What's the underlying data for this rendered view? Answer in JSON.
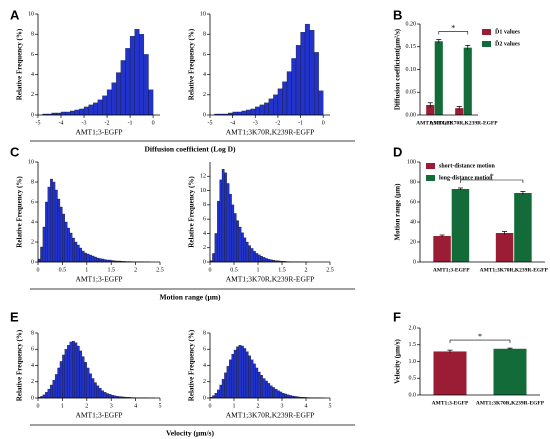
{
  "panels": [
    {
      "letter": "A",
      "xlabel": "Diffusion coefficient (Log D)"
    },
    {
      "letter": "B"
    },
    {
      "letter": "C",
      "xlabel": "Motion range (μm)"
    },
    {
      "letter": "D"
    },
    {
      "letter": "E",
      "xlabel": "Velocity (μm/s)"
    },
    {
      "letter": "F"
    }
  ],
  "chart_data": [
    {
      "type": "histogram",
      "ylabel": "Relative Frequency (%)",
      "xlabel": "AMT1;3-EGFP",
      "color": "#2233cc",
      "bins": [
        -4.8,
        -4.6,
        -4.4,
        -4.2,
        -4.0,
        -3.8,
        -3.6,
        -3.4,
        -3.2,
        -3.0,
        -2.8,
        -2.6,
        -2.4,
        -2.2,
        -2.0,
        -1.8,
        -1.6,
        -1.4,
        -1.2,
        -1.0,
        -0.8,
        -0.6,
        -0.4,
        -0.2,
        0.0
      ],
      "counts": [
        0.1,
        0.1,
        0.2,
        0.2,
        0.3,
        0.3,
        0.4,
        0.5,
        0.6,
        0.8,
        1.0,
        1.2,
        1.5,
        1.9,
        2.5,
        3.2,
        4.2,
        5.4,
        6.6,
        7.8,
        8.5,
        8.0,
        6.0,
        2.5
      ],
      "xlim": [
        -5,
        0.3
      ],
      "xticks": [
        -5,
        -4,
        -3,
        -2,
        -1,
        0
      ],
      "ylim": [
        0,
        10
      ],
      "yticks": [
        0,
        2,
        4,
        6,
        8,
        10
      ]
    },
    {
      "type": "histogram",
      "ylabel": "Relative Frequency (%)",
      "xlabel": "AMT1;3K70R,K239R-EGFP",
      "color": "#2233cc",
      "bins": [
        -4.8,
        -4.6,
        -4.4,
        -4.2,
        -4.0,
        -3.8,
        -3.6,
        -3.4,
        -3.2,
        -3.0,
        -2.8,
        -2.6,
        -2.4,
        -2.2,
        -2.0,
        -1.8,
        -1.6,
        -1.4,
        -1.2,
        -1.0,
        -0.8,
        -0.6,
        -0.4,
        -0.2,
        0.0
      ],
      "counts": [
        0.1,
        0.1,
        0.1,
        0.2,
        0.3,
        0.3,
        0.4,
        0.5,
        0.6,
        0.8,
        1.0,
        1.2,
        1.6,
        2.0,
        2.6,
        3.3,
        4.3,
        5.6,
        6.9,
        8.2,
        9.0,
        8.4,
        6.2,
        2.4
      ],
      "xlim": [
        -5,
        0.3
      ],
      "xticks": [
        -5,
        -4,
        -3,
        -2,
        -1,
        0
      ],
      "ylim": [
        0,
        10
      ],
      "yticks": [
        0,
        2,
        4,
        6,
        8,
        10
      ]
    },
    {
      "type": "histogram",
      "ylabel": "Relative Frequency (%)",
      "xlabel": "AMT1;3-EGFP",
      "color": "#2233cc",
      "bins": [
        0,
        0.05,
        0.1,
        0.15,
        0.2,
        0.25,
        0.3,
        0.35,
        0.4,
        0.45,
        0.5,
        0.55,
        0.6,
        0.65,
        0.7,
        0.75,
        0.8,
        0.85,
        0.9,
        0.95,
        1.0,
        1.05,
        1.1,
        1.15,
        1.2,
        1.25,
        1.3,
        1.35,
        1.4,
        1.45,
        1.5,
        1.55,
        1.6,
        1.65,
        1.7,
        1.75,
        1.8,
        1.85,
        1.9,
        1.95,
        2.0,
        2.05,
        2.1,
        2.15,
        2.2,
        2.25,
        2.3,
        2.35,
        2.4,
        2.45,
        2.5
      ],
      "counts": [
        0.3,
        1.5,
        3.5,
        6.0,
        7.5,
        8.3,
        8.0,
        7.2,
        6.3,
        5.5,
        4.8,
        4.0,
        3.4,
        2.9,
        2.4,
        2.0,
        1.7,
        1.4,
        1.1,
        0.9,
        0.8,
        0.7,
        0.6,
        0.5,
        0.4,
        0.35,
        0.3,
        0.25,
        0.2,
        0.2,
        0.15,
        0.12,
        0.1,
        0.1,
        0.08,
        0.06,
        0.05,
        0.05,
        0.04,
        0.03,
        0.03,
        0.02,
        0.02,
        0.01,
        0.01,
        0.01,
        0,
        0,
        0,
        0
      ],
      "xlim": [
        0,
        2.5
      ],
      "xticks": [
        0,
        0.5,
        1,
        1.5,
        2,
        2.5
      ],
      "ylim": [
        0,
        10
      ],
      "yticks": [
        0,
        2,
        4,
        6,
        8,
        10
      ]
    },
    {
      "type": "histogram",
      "ylabel": "Relative Frequency (%)",
      "xlabel": "AMT1;3K70R,K239R-EGFP",
      "color": "#2233cc",
      "bins": [
        0,
        0.05,
        0.1,
        0.15,
        0.2,
        0.25,
        0.3,
        0.35,
        0.4,
        0.45,
        0.5,
        0.55,
        0.6,
        0.65,
        0.7,
        0.75,
        0.8,
        0.85,
        0.9,
        0.95,
        1.0,
        1.05,
        1.1,
        1.15,
        1.2,
        1.25,
        1.3,
        1.35,
        1.4,
        1.45,
        1.5,
        1.55,
        1.6,
        1.65,
        1.7,
        1.75,
        1.8,
        1.85,
        1.9,
        1.95,
        2.0,
        2.05,
        2.1,
        2.15,
        2.2,
        2.25,
        2.3,
        2.35,
        2.4,
        2.45,
        2.5
      ],
      "counts": [
        0.2,
        1.2,
        4.0,
        8.5,
        11.5,
        13.0,
        12.5,
        11.0,
        9.5,
        8.0,
        6.8,
        5.8,
        4.9,
        4.1,
        3.4,
        2.8,
        2.3,
        1.9,
        1.5,
        1.2,
        1.0,
        0.8,
        0.65,
        0.5,
        0.4,
        0.32,
        0.25,
        0.2,
        0.16,
        0.13,
        0.1,
        0.08,
        0.06,
        0.05,
        0.04,
        0.03,
        0.02,
        0.02,
        0.01,
        0.01,
        0.01,
        0,
        0,
        0,
        0,
        0,
        0,
        0,
        0,
        0
      ],
      "xlim": [
        0,
        2.5
      ],
      "xticks": [
        0,
        0.5,
        1,
        1.5,
        2,
        2.5
      ],
      "ylim": [
        0,
        14
      ],
      "yticks": [
        0,
        2,
        4,
        6,
        8,
        10,
        12
      ]
    },
    {
      "type": "histogram",
      "ylabel": "Relative Frequency (%)",
      "xlabel": "AMT1;3-EGFP",
      "color": "#2233cc",
      "bins": [
        0,
        0.1,
        0.2,
        0.3,
        0.4,
        0.5,
        0.6,
        0.7,
        0.8,
        0.9,
        1.0,
        1.1,
        1.2,
        1.3,
        1.4,
        1.5,
        1.6,
        1.7,
        1.8,
        1.9,
        2.0,
        2.1,
        2.2,
        2.3,
        2.4,
        2.5,
        2.6,
        2.7,
        2.8,
        2.9,
        3.0,
        3.1,
        3.2,
        3.3,
        3.4,
        3.5,
        3.6,
        3.7,
        3.8,
        3.9,
        4.0,
        4.1,
        4.2,
        4.3,
        4.4,
        4.5,
        4.6,
        4.7,
        4.8,
        4.9,
        5.0
      ],
      "counts": [
        0.1,
        0.2,
        0.4,
        0.7,
        1.1,
        1.6,
        2.2,
        2.9,
        3.7,
        4.5,
        5.3,
        6.0,
        6.5,
        6.9,
        7.0,
        6.8,
        6.4,
        5.8,
        5.1,
        4.4,
        3.7,
        3.0,
        2.4,
        1.9,
        1.5,
        1.2,
        0.9,
        0.7,
        0.55,
        0.45,
        0.35,
        0.28,
        0.22,
        0.18,
        0.15,
        0.12,
        0.1,
        0.08,
        0.06,
        0.05,
        0.04,
        0.03,
        0.03,
        0.02,
        0.02,
        0.01,
        0.01,
        0.01,
        0,
        0
      ],
      "xlim": [
        0,
        5
      ],
      "xticks": [
        0,
        1,
        2,
        3,
        4,
        5
      ],
      "ylim": [
        0,
        8
      ],
      "yticks": [
        0,
        2,
        4,
        6,
        8
      ]
    },
    {
      "type": "histogram",
      "ylabel": "Relative Frequency (%)",
      "xlabel": "AMT1;3K70R,K239R-EGFP",
      "color": "#2233cc",
      "bins": [
        0,
        0.1,
        0.2,
        0.3,
        0.4,
        0.5,
        0.6,
        0.7,
        0.8,
        0.9,
        1.0,
        1.1,
        1.2,
        1.3,
        1.4,
        1.5,
        1.6,
        1.7,
        1.8,
        1.9,
        2.0,
        2.1,
        2.2,
        2.3,
        2.4,
        2.5,
        2.6,
        2.7,
        2.8,
        2.9,
        3.0,
        3.1,
        3.2,
        3.3,
        3.4,
        3.5,
        3.6,
        3.7,
        3.8,
        3.9,
        4.0,
        4.1,
        4.2,
        4.3,
        4.4,
        4.5,
        4.6,
        4.7,
        4.8,
        4.9,
        5.0
      ],
      "counts": [
        0.1,
        0.3,
        0.6,
        1.0,
        1.6,
        2.3,
        3.1,
        3.9,
        4.7,
        5.4,
        5.9,
        6.3,
        6.5,
        6.4,
        6.1,
        5.7,
        5.2,
        4.7,
        4.2,
        3.7,
        3.2,
        2.8,
        2.4,
        2.1,
        1.8,
        1.5,
        1.3,
        1.1,
        0.9,
        0.75,
        0.6,
        0.5,
        0.4,
        0.32,
        0.25,
        0.2,
        0.16,
        0.12,
        0.1,
        0.08,
        0.06,
        0.05,
        0.04,
        0.03,
        0.02,
        0.02,
        0.01,
        0.01,
        0,
        0
      ],
      "xlim": [
        0,
        5
      ],
      "xticks": [
        0,
        1,
        2,
        3,
        4,
        5
      ],
      "ylim": [
        0,
        8
      ],
      "yticks": [
        0,
        2,
        4,
        6,
        8
      ]
    },
    {
      "type": "bar",
      "ylabel": "Diffusion coefficient(μm²/s)",
      "categories": [
        "AMT1;3-EGFP",
        "AMT1;3K70R,K239R-EGFP"
      ],
      "series": [
        {
          "name": "Ď1 values",
          "color": "#9b1c35",
          "values": [
            0.022,
            0.015
          ],
          "errors": [
            0.005,
            0.004
          ]
        },
        {
          "name": "Ď2 values",
          "color": "#146b3a",
          "values": [
            0.162,
            0.148
          ],
          "errors": [
            0.004,
            0.005
          ]
        }
      ],
      "ylim": [
        0,
        0.2
      ],
      "yticks": [
        {
          "value": 0,
          "label": "0.00"
        },
        0.05,
        {
          "value": 0.1,
          "label": "0.10"
        },
        0.15,
        {
          "value": 0.2,
          "label": "0.20"
        }
      ],
      "legend": "right",
      "annotation": "*"
    },
    {
      "type": "bar",
      "ylabel": "Motion range (μm)",
      "categories": [
        "AMT1;3-EGFP",
        "AMT1;3K70R,K239R-EGFP"
      ],
      "series": [
        {
          "name": "short-distance motion",
          "color": "#9b1c35",
          "values": [
            26,
            29
          ],
          "errors": [
            1,
            1.5
          ]
        },
        {
          "name": "long-distance motion",
          "color": "#146b3a",
          "values": [
            73,
            69
          ],
          "errors": [
            1,
            1.5
          ]
        }
      ],
      "ylim": [
        0,
        100
      ],
      "yticks": [
        0,
        20,
        40,
        60,
        80,
        100
      ],
      "legend": "upper left",
      "annotation": "*"
    },
    {
      "type": "bar",
      "ylabel": "Velocity (μm/s)",
      "categories": [
        "AMT1;3-EGFP",
        "AMT1;3K70R,K239R-EGFP"
      ],
      "series": [
        {
          "colors": [
            "#9b1c35",
            "#146b3a"
          ],
          "values": [
            1.3,
            1.38
          ],
          "errors": [
            0.04,
            0.02
          ]
        }
      ],
      "ylim": [
        0,
        2
      ],
      "yticks": [
        {
          "value": 0,
          "label": "0.0"
        },
        0.5,
        {
          "value": 1,
          "label": "1.0"
        },
        1.5,
        {
          "value": 2,
          "label": "2.0"
        }
      ],
      "annotation": "*"
    }
  ]
}
